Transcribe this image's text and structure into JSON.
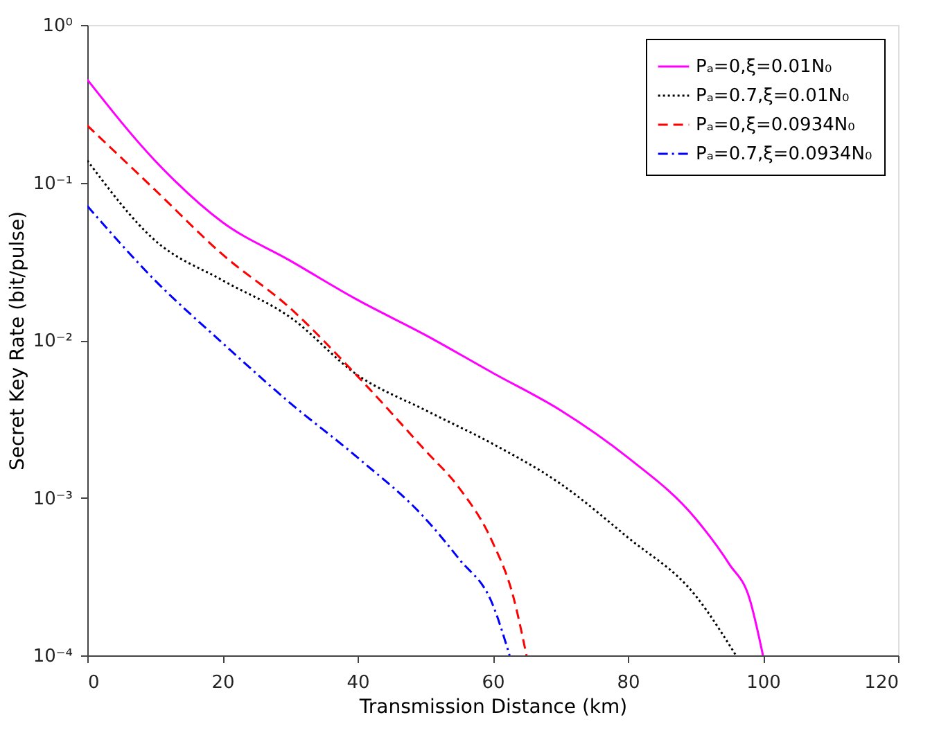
{
  "chart_data": {
    "type": "line",
    "xlabel": "Transmission Distance (km)",
    "ylabel": "Secret Key Rate (bit/pulse)",
    "log": "y",
    "grid": false,
    "legend": "top right",
    "marker": "none",
    "xlim": [
      0,
      120
    ],
    "xticks": [
      0,
      20,
      40,
      60,
      80,
      100,
      120
    ],
    "ylim": [
      0.0001,
      1
    ],
    "yticks": [
      {
        "value": 0.0001,
        "label": "10⁻⁴"
      },
      {
        "value": 0.001,
        "label": "10⁻³"
      },
      {
        "value": 0.01,
        "label": "10⁻²"
      },
      {
        "value": 0.1,
        "label": "10⁻¹"
      },
      {
        "value": 1,
        "label": "10⁰"
      }
    ],
    "series": [
      {
        "name": "Pₐ=0,ξ=0.01N₀",
        "color": "#ff00ff",
        "line_style": "solid",
        "x": [
          0,
          10,
          20,
          30,
          40,
          50,
          60,
          70,
          80,
          90,
          95,
          98,
          100
        ],
        "values": [
          0.45,
          0.138,
          0.056,
          0.032,
          0.018,
          0.0108,
          0.0062,
          0.0036,
          0.0018,
          0.00074,
          0.00038,
          0.00023,
          0.0001
        ]
      },
      {
        "name": "Pₐ=0.7,ξ=0.01N₀",
        "color": "#000000",
        "line_style": "dotted",
        "x": [
          0,
          10,
          20,
          30,
          40,
          50,
          60,
          70,
          80,
          90,
          96
        ],
        "values": [
          0.138,
          0.043,
          0.024,
          0.014,
          0.006,
          0.0036,
          0.0022,
          0.00123,
          0.00056,
          0.00024,
          0.0001
        ]
      },
      {
        "name": "Pₐ=0,ξ=0.0934N₀",
        "color": "#ff0000",
        "line_style": "dashed",
        "x": [
          0,
          10,
          20,
          30,
          40,
          50,
          55,
          60,
          63,
          65
        ],
        "values": [
          0.23,
          0.09,
          0.035,
          0.016,
          0.0059,
          0.002,
          0.00116,
          0.00052,
          0.00024,
          0.0001
        ]
      },
      {
        "name": "Pₐ=0.7,ξ=0.0934N₀",
        "color": "#0000ff",
        "line_style": "dashdot",
        "x": [
          0,
          10,
          20,
          30,
          40,
          50,
          55,
          60,
          62.5
        ],
        "values": [
          0.071,
          0.024,
          0.0096,
          0.004,
          0.0018,
          0.00074,
          0.00041,
          0.00021,
          0.0001
        ]
      }
    ]
  }
}
